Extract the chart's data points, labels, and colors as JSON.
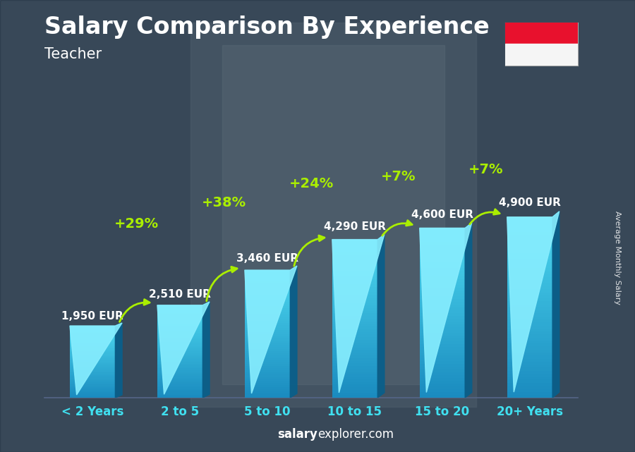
{
  "title": "Salary Comparison By Experience",
  "subtitle": "Teacher",
  "categories": [
    "< 2 Years",
    "2 to 5",
    "5 to 10",
    "10 to 15",
    "15 to 20",
    "20+ Years"
  ],
  "values": [
    1950,
    2510,
    3460,
    4290,
    4600,
    4900
  ],
  "labels": [
    "1,950 EUR",
    "2,510 EUR",
    "3,460 EUR",
    "4,290 EUR",
    "4,600 EUR",
    "4,900 EUR"
  ],
  "pct_changes": [
    "+29%",
    "+38%",
    "+24%",
    "+7%",
    "+7%"
  ],
  "bar_face_top": "#4dd9f0",
  "bar_face_bottom": "#1a8bbf",
  "bar_top_face": "#80eeff",
  "bar_side_face": "#0e6a99",
  "bg_dark": "#1e2d45",
  "bg_mid": "#2a3f5f",
  "text_white": "#ffffff",
  "text_cyan": "#40e0f0",
  "text_green": "#aaee00",
  "ylabel": "Average Monthly Salary",
  "footer_bold": "salary",
  "footer_normal": "explorer.com",
  "flag_red": "#e8112d",
  "flag_white": "#f5f5f5",
  "title_fontsize": 24,
  "subtitle_fontsize": 15,
  "label_fontsize": 11,
  "cat_fontsize": 12,
  "pct_fontsize": 14,
  "footer_fontsize": 12,
  "ylabel_fontsize": 8
}
